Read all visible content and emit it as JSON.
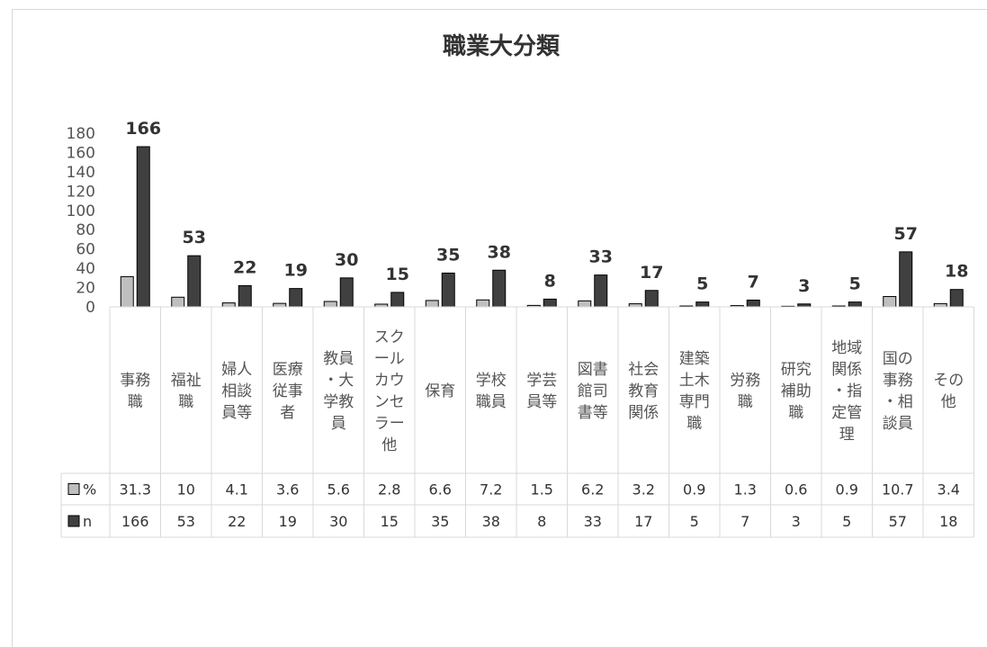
{
  "chart_data": {
    "type": "bar",
    "title": "職業大分類",
    "categories": [
      [
        "事務",
        "職"
      ],
      [
        "福祉",
        "職"
      ],
      [
        "婦人",
        "相談",
        "員等"
      ],
      [
        "医療",
        "従事",
        "者"
      ],
      [
        "教員",
        "・大",
        "学教",
        "員"
      ],
      [
        "スク",
        "ール",
        "カウ",
        "ンセ",
        "ラー",
        "他"
      ],
      [
        "保育"
      ],
      [
        "学校",
        "職員"
      ],
      [
        "学芸",
        "員等"
      ],
      [
        "図書",
        "館司",
        "書等"
      ],
      [
        "社会",
        "教育",
        "関係"
      ],
      [
        "建築",
        "土木",
        "専門",
        "職"
      ],
      [
        "労務",
        "職"
      ],
      [
        "研究",
        "補助",
        "職"
      ],
      [
        "地域",
        "関係",
        "・指",
        "定管",
        "理"
      ],
      [
        "国の",
        "事務",
        "・相",
        "談員"
      ],
      [
        "その",
        "他"
      ]
    ],
    "series": [
      {
        "name": "%",
        "color": "#bfbfbf",
        "values": [
          "31.3",
          "10",
          "4.1",
          "3.6",
          "5.6",
          "2.8",
          "6.6",
          "7.2",
          "1.5",
          "6.2",
          "3.2",
          "0.9",
          "1.3",
          "0.6",
          "0.9",
          "10.7",
          "3.4"
        ]
      },
      {
        "name": "n",
        "color": "#404040",
        "values": [
          "166",
          "53",
          "22",
          "19",
          "30",
          "15",
          "35",
          "38",
          "8",
          "33",
          "17",
          "5",
          "7",
          "3",
          "5",
          "57",
          "18"
        ]
      }
    ],
    "ylim": [
      0,
      180
    ],
    "yticks": [
      "0",
      "20",
      "40",
      "60",
      "80",
      "100",
      "120",
      "140",
      "160",
      "180"
    ],
    "data_labels_series": "n",
    "data_table": true
  }
}
